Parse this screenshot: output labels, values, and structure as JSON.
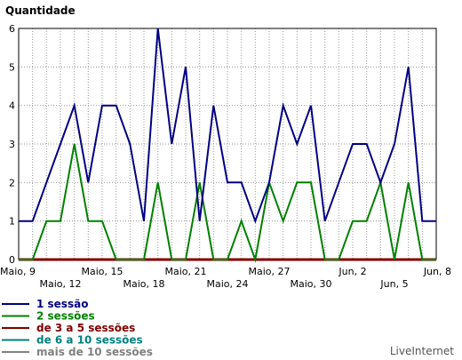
{
  "chart_data": {
    "type": "line",
    "title": "Quantidade",
    "ylim": [
      0,
      6
    ],
    "yticks": [
      "0",
      "1",
      "2",
      "3",
      "4",
      "5",
      "6"
    ],
    "x_start_label": "Maio, 9",
    "x_end_label": "Jun, 8",
    "x_tick_labels": [
      "Maio, 9",
      "Maio, 12",
      "Maio, 15",
      "Maio, 18",
      "Maio, 21",
      "Maio, 24",
      "Maio, 27",
      "Maio, 30",
      "Jun, 2",
      "Jun, 5",
      "Jun, 8"
    ],
    "x_tick_indices": [
      0,
      3,
      6,
      9,
      12,
      15,
      18,
      21,
      24,
      27,
      30
    ],
    "grid": true,
    "legend_position": "bottom-left",
    "series": [
      {
        "name": "1 sessão",
        "color": "#000080",
        "values": [
          1,
          1,
          2,
          3,
          4,
          2,
          4,
          4,
          3,
          1,
          6,
          3,
          5,
          1,
          4,
          2,
          2,
          1,
          2,
          4,
          3,
          4,
          1,
          2,
          3,
          3,
          2,
          3,
          5,
          1,
          1
        ]
      },
      {
        "name": "2 sessões",
        "color": "#008000",
        "values": [
          0,
          0,
          1,
          1,
          3,
          1,
          1,
          0,
          0,
          0,
          2,
          0,
          0,
          2,
          0,
          0,
          1,
          0,
          2,
          1,
          2,
          2,
          0,
          0,
          1,
          1,
          2,
          0,
          2,
          0,
          0
        ]
      },
      {
        "name": "de 3 a 5 sessões",
        "color": "#800000",
        "values": [
          0,
          0,
          0,
          0,
          0,
          0,
          0,
          0,
          0,
          0,
          0,
          0,
          0,
          0,
          0,
          0,
          0,
          0,
          0,
          0,
          0,
          0,
          0,
          0,
          0,
          0,
          0,
          0,
          0,
          0,
          0
        ]
      },
      {
        "name": "de 6 a 10 sessões",
        "color": "#008080",
        "values": [
          0,
          0,
          0,
          0,
          0,
          0,
          0,
          0,
          0,
          0,
          0,
          0,
          0,
          0,
          0,
          0,
          0,
          0,
          0,
          0,
          0,
          0,
          0,
          0,
          0,
          0,
          0,
          0,
          0,
          0,
          0
        ]
      },
      {
        "name": "mais de 10 sessões",
        "color": "#808080",
        "values": [
          0,
          0,
          0,
          0,
          0,
          0,
          0,
          0,
          0,
          0,
          0,
          0,
          0,
          0,
          0,
          0,
          0,
          0,
          0,
          0,
          0,
          0,
          0,
          0,
          0,
          0,
          0,
          0,
          0,
          0,
          0
        ]
      }
    ]
  },
  "watermark": "LiveInternet"
}
